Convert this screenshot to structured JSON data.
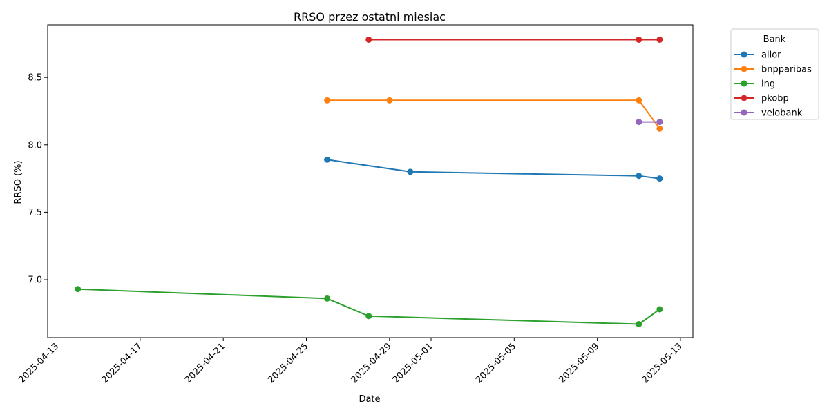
{
  "chart_data": {
    "type": "line",
    "title": "RRSO przez ostatni miesiac",
    "xlabel": "Date",
    "ylabel": "RRSO (%)",
    "xlim": [
      "2025-04-12",
      "2025-05-13"
    ],
    "ylim": [
      6.57,
      8.89
    ],
    "x_ticks": [
      "2025-04-13",
      "2025-04-17",
      "2025-04-21",
      "2025-04-25",
      "2025-04-29",
      "2025-05-01",
      "2025-05-05",
      "2025-05-09",
      "2025-05-13"
    ],
    "y_ticks": [
      7.0,
      7.5,
      8.0,
      8.5
    ],
    "y_tick_labels": [
      "7.0",
      "7.5",
      "8.0",
      "8.5"
    ],
    "grid": false,
    "legend": {
      "title": "Bank",
      "placement": "outside-top-right"
    },
    "series": [
      {
        "name": "alior",
        "color": "#1f77b4",
        "points": [
          [
            "2025-04-26",
            7.89
          ],
          [
            "2025-04-30",
            7.8
          ],
          [
            "2025-05-11",
            7.77
          ],
          [
            "2025-05-12",
            7.75
          ]
        ]
      },
      {
        "name": "bnpparibas",
        "color": "#ff7f0e",
        "points": [
          [
            "2025-04-26",
            8.33
          ],
          [
            "2025-04-29",
            8.33
          ],
          [
            "2025-05-11",
            8.33
          ],
          [
            "2025-05-12",
            8.12
          ]
        ]
      },
      {
        "name": "ing",
        "color": "#2ca02c",
        "points": [
          [
            "2025-04-14",
            6.93
          ],
          [
            "2025-04-26",
            6.86
          ],
          [
            "2025-04-28",
            6.73
          ],
          [
            "2025-05-11",
            6.67
          ],
          [
            "2025-05-12",
            6.78
          ]
        ]
      },
      {
        "name": "pkobp",
        "color": "#d62728",
        "points": [
          [
            "2025-04-28",
            8.78
          ],
          [
            "2025-05-11",
            8.78
          ],
          [
            "2025-05-12",
            8.78
          ]
        ]
      },
      {
        "name": "velobank",
        "color": "#9467bd",
        "points": [
          [
            "2025-05-11",
            8.17
          ],
          [
            "2025-05-12",
            8.17
          ]
        ]
      }
    ]
  }
}
